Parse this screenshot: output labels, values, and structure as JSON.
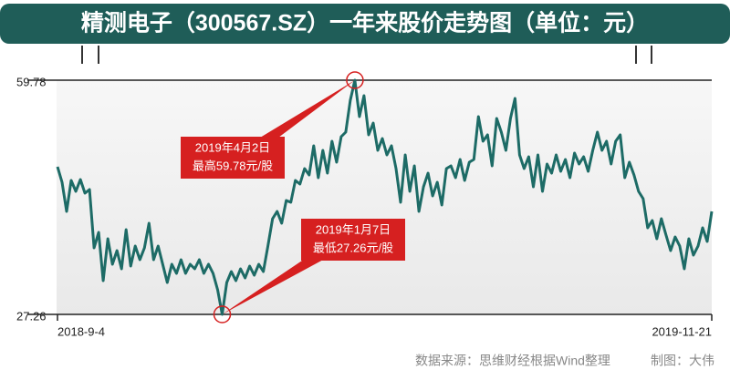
{
  "chart_data": {
    "type": "line",
    "title": "精测电子（300567.SZ）一年来股价走势图（单位：元）",
    "source": "数据来源：思维财经根据Wind整理",
    "credit": "制图：大伟",
    "color": "#1d6b66",
    "ylim": [
      27.26,
      59.78
    ],
    "yticks": [
      27.26,
      59.78
    ],
    "annotations": [
      {
        "date": "2019年4月2日",
        "text": "最高59.78元/股"
      },
      {
        "date": "2019年1月7日",
        "text": "最低27.26元/股"
      }
    ],
    "categories": [
      "2018-9-4",
      null,
      null,
      null,
      null,
      null,
      null,
      null,
      null,
      null,
      null,
      null,
      null,
      null,
      null,
      null,
      null,
      null,
      null,
      null,
      null,
      null,
      null,
      null,
      null,
      null,
      null,
      null,
      null,
      null,
      null,
      null,
      null,
      null,
      null,
      null,
      null,
      null,
      null,
      null,
      null,
      null,
      null,
      null,
      null,
      null,
      null,
      null,
      null,
      null,
      null,
      null,
      null,
      null,
      null,
      null,
      null,
      null,
      null,
      null,
      null,
      null,
      null,
      null,
      null,
      null,
      null,
      null,
      null,
      null,
      null,
      null,
      null,
      null,
      null,
      null,
      null,
      null,
      null,
      null,
      null,
      null,
      null,
      null,
      null,
      null,
      null,
      null,
      null,
      null,
      null,
      null,
      null,
      null,
      null,
      null,
      null,
      null,
      null,
      null,
      null,
      null,
      null,
      null,
      null,
      null,
      null,
      null,
      null,
      null,
      null,
      null,
      null,
      null,
      null,
      null,
      null,
      null,
      null,
      null,
      null,
      null,
      null,
      null,
      null,
      null,
      null,
      null,
      null,
      null,
      null,
      null,
      null,
      null,
      null,
      null,
      null,
      null,
      null,
      null,
      null,
      null,
      null,
      "2019-11-21"
    ],
    "values": [
      47.76,
      45.61,
      41.56,
      45.86,
      44.34,
      45.99,
      44.09,
      44.6,
      36.5,
      38.65,
      31.94,
      37.76,
      34.22,
      36.12,
      33.59,
      39.03,
      33.97,
      36.75,
      34.85,
      36.5,
      39.91,
      34.85,
      36.75,
      34.22,
      31.69,
      34.22,
      32.95,
      34.85,
      32.95,
      34.22,
      33.59,
      34.85,
      32.95,
      34.22,
      32.95,
      30.68,
      27.26,
      31.69,
      33.21,
      31.94,
      33.59,
      32.32,
      33.97,
      32.7,
      34.22,
      33.21,
      36.75,
      40.55,
      41.56,
      39.91,
      43.08,
      42.82,
      45.86,
      45.35,
      47.51,
      46.62,
      50.67,
      46.24,
      50.04,
      46.87,
      51.3,
      48.39,
      51.93,
      52.57,
      57.0,
      59.78,
      54.72,
      57.63,
      52.19,
      53.83,
      50.04,
      51.68,
      49.4,
      50.67,
      47.51,
      42.82,
      49.4,
      44.34,
      47.89,
      41.56,
      44.97,
      46.87,
      43.71,
      45.61,
      42.44,
      47.51,
      47.89,
      46.24,
      48.77,
      45.86,
      48.39,
      48.77,
      54.72,
      51.3,
      52.19,
      47.89,
      54.47,
      52.57,
      50.04,
      54.47,
      57.25,
      49.4,
      47.51,
      49.15,
      44.97,
      49.4,
      44.34,
      48.14,
      46.87,
      49.4,
      47.13,
      48.77,
      46.24,
      49.66,
      48.14,
      49.15,
      47.13,
      50.04,
      52.57,
      50.04,
      51.3,
      48.14,
      51.3,
      52.19,
      46.24,
      48.39,
      46.62,
      44.34,
      43.33,
      39.28,
      40.29,
      37.76,
      40.55,
      38.27,
      36.12,
      38.01,
      36.75,
      33.59,
      37.76,
      35.48,
      36.75,
      39.28,
      37.38,
      41.56
    ]
  }
}
